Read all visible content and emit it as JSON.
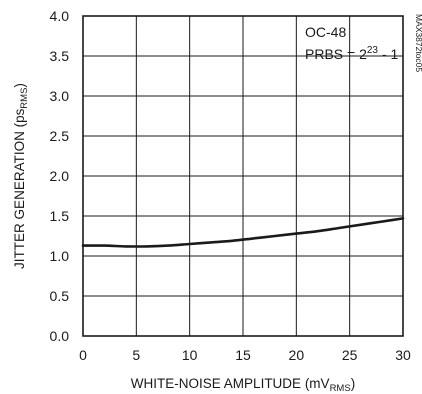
{
  "chart_data": {
    "type": "line",
    "title": "",
    "xlabel": {
      "main": "WHITE-NOISE AMPLITUDE (mV",
      "sub": "RMS",
      "close": ")"
    },
    "ylabel": {
      "main": "JITTER GENERATION (ps",
      "sub": "RMS",
      "close": ")"
    },
    "xlim": [
      0,
      30
    ],
    "ylim": [
      0.0,
      4.0
    ],
    "x_ticks": [
      "0",
      "5",
      "10",
      "15",
      "20",
      "25",
      "30"
    ],
    "y_ticks": [
      "0.0",
      "0.5",
      "1.0",
      "1.5",
      "2.0",
      "2.5",
      "3.0",
      "3.5",
      "4.0"
    ],
    "x_tick_values": [
      0,
      5,
      10,
      15,
      20,
      25,
      30
    ],
    "y_tick_values": [
      0.0,
      0.5,
      1.0,
      1.5,
      2.0,
      2.5,
      3.0,
      3.5,
      4.0
    ],
    "grid": true,
    "series": [
      {
        "x": [
          0,
          2,
          4,
          6,
          8,
          10,
          12,
          14,
          16,
          18,
          20,
          22,
          24,
          26,
          28,
          30
        ],
        "values": [
          1.13,
          1.13,
          1.12,
          1.12,
          1.13,
          1.15,
          1.17,
          1.19,
          1.22,
          1.25,
          1.28,
          1.31,
          1.35,
          1.39,
          1.43,
          1.47
        ],
        "color": "#1a1a1a"
      }
    ],
    "annotation": {
      "line1": "OC-48",
      "line2_prefix": "PRBS = 2",
      "line2_exponent": "23",
      "line2_suffix": " - 1"
    },
    "part_number": "MAX3872toc05"
  }
}
